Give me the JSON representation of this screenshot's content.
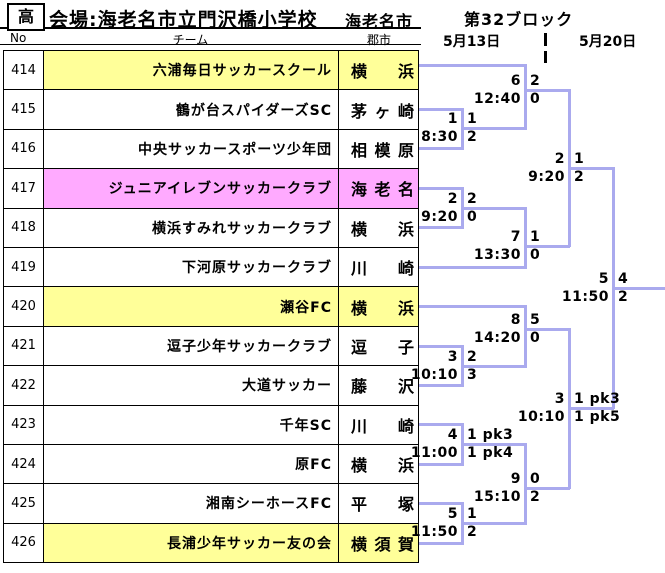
{
  "header": {
    "grade_label": "高",
    "venue": "会場:海老名市立門沢橋小学校",
    "venue_city": "海老名市",
    "block": "第32ブロック",
    "date_left": "5月13日",
    "date_right": "5月20日"
  },
  "table": {
    "columns": {
      "no": "No",
      "team": "チーム",
      "city": "郡市"
    },
    "rows": [
      {
        "no": "414",
        "team": "六浦毎日サッカースクール",
        "city": "横浜",
        "highlight": "#ffff99"
      },
      {
        "no": "415",
        "team": "鶴が台スパイダーズSC",
        "city": "茅ヶ崎",
        "highlight": "#ffffff"
      },
      {
        "no": "416",
        "team": "中央サッカースポーツ少年団",
        "city": "相模原",
        "highlight": "#ffffff"
      },
      {
        "no": "417",
        "team": "ジュニアイレブンサッカークラブ",
        "city": "海老名",
        "highlight": "#ffaaff"
      },
      {
        "no": "418",
        "team": "横浜すみれサッカークラブ",
        "city": "横浜",
        "highlight": "#ffffff"
      },
      {
        "no": "419",
        "team": "下河原サッカークラブ",
        "city": "川崎",
        "highlight": "#ffffff"
      },
      {
        "no": "420",
        "team": "瀬谷FC",
        "city": "横浜",
        "highlight": "#ffff99"
      },
      {
        "no": "421",
        "team": "逗子少年サッカークラブ",
        "city": "逗子",
        "highlight": "#ffffff"
      },
      {
        "no": "422",
        "team": "大道サッカー",
        "city": "藤沢",
        "highlight": "#ffffff"
      },
      {
        "no": "423",
        "team": "千年SC",
        "city": "川崎",
        "highlight": "#ffffff"
      },
      {
        "no": "424",
        "team": "原FC",
        "city": "横浜",
        "highlight": "#ffffff"
      },
      {
        "no": "425",
        "team": "湘南シーホースFC",
        "city": "平塚",
        "highlight": "#ffffff"
      },
      {
        "no": "426",
        "team": "長浦少年サッカー友の会",
        "city": "横須賀",
        "highlight": "#ffff99"
      }
    ]
  },
  "bracket": {
    "line_color": "#aaaaee",
    "matches": [
      {
        "day": "5月13日",
        "no": "1",
        "time": "8:30",
        "score_top": "1",
        "score_bottom": "2"
      },
      {
        "day": "5月13日",
        "no": "2",
        "time": "9:20",
        "score_top": "2",
        "score_bottom": "0"
      },
      {
        "day": "5月13日",
        "no": "3",
        "time": "10:10",
        "score_top": "2",
        "score_bottom": "3"
      },
      {
        "day": "5月13日",
        "no": "4",
        "time": "11:00",
        "score_top": "1 pk3",
        "score_bottom": "1 pk4"
      },
      {
        "day": "5月13日",
        "no": "5",
        "time": "11:50",
        "score_top": "1",
        "score_bottom": "2"
      },
      {
        "day": "5月13日",
        "no": "6",
        "time": "12:40",
        "score_top": "2",
        "score_bottom": "0"
      },
      {
        "day": "5月13日",
        "no": "7",
        "time": "13:30",
        "score_top": "1",
        "score_bottom": "0"
      },
      {
        "day": "5月13日",
        "no": "8",
        "time": "14:20",
        "score_top": "5",
        "score_bottom": "0"
      },
      {
        "day": "5月13日",
        "no": "9",
        "time": "15:10",
        "score_top": "0",
        "score_bottom": "2"
      },
      {
        "day": "5月20日",
        "no": "2",
        "time": "9:20",
        "score_top": "1",
        "score_bottom": "2"
      },
      {
        "day": "5月20日",
        "no": "3",
        "time": "10:10",
        "score_top": "1 pk3",
        "score_bottom": "1 pk5"
      },
      {
        "day": "5月20日",
        "no": "5",
        "time": "11:50",
        "score_top": "4",
        "score_bottom": "2"
      }
    ]
  }
}
